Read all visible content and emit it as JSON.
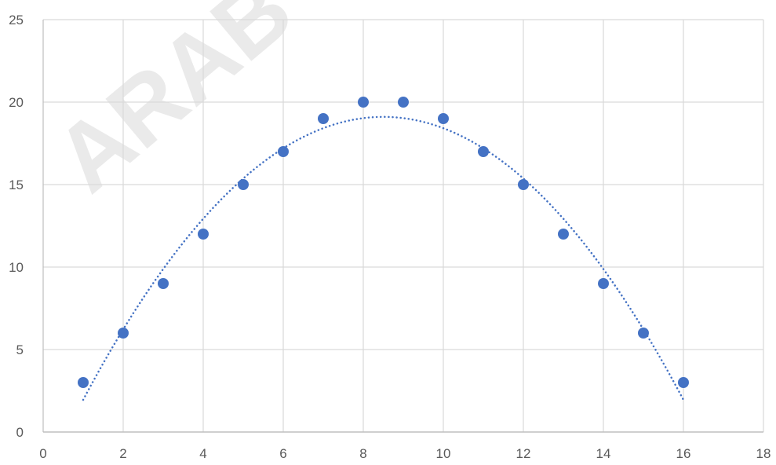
{
  "watermark": {
    "text": "ARAB"
  },
  "chart_data": {
    "type": "scatter",
    "title": "",
    "xlabel": "",
    "ylabel": "",
    "xlim": [
      0,
      18
    ],
    "ylim": [
      0,
      25
    ],
    "x_ticks": [
      0,
      2,
      4,
      6,
      8,
      10,
      12,
      14,
      16,
      18
    ],
    "y_ticks": [
      0,
      5,
      10,
      15,
      20,
      25
    ],
    "grid": true,
    "legend": "none",
    "series": [
      {
        "x": [
          1,
          2,
          3,
          4,
          5,
          6,
          7,
          8,
          9,
          10,
          11,
          12,
          13,
          14,
          15,
          16
        ],
        "y": [
          3,
          6,
          9,
          12,
          15,
          17,
          19,
          20,
          20,
          19,
          17,
          15,
          12,
          9,
          6,
          3
        ],
        "color": "#4472c4",
        "marker": "circle"
      }
    ],
    "trendline": {
      "type": "polynomial",
      "order": 2,
      "style": "dotted",
      "color": "#4472c4",
      "x_range": [
        1,
        16
      ]
    },
    "colors": {
      "gridline": "#d9d9d9",
      "axis": "#bfbfbf",
      "tick_text": "#595959"
    }
  }
}
